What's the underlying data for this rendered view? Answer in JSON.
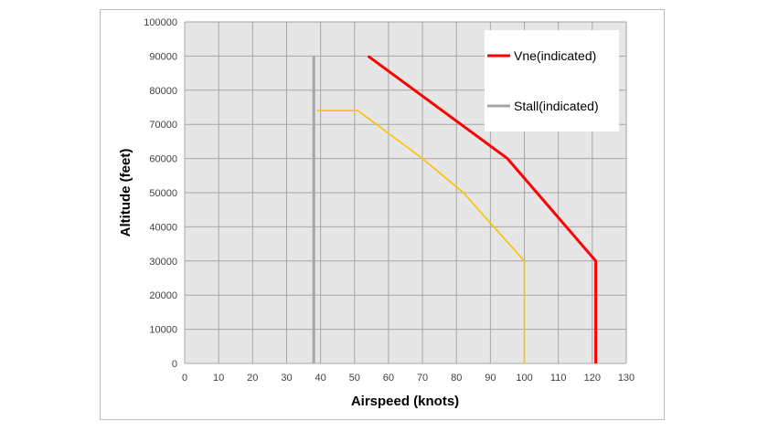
{
  "chart_data": {
    "type": "line",
    "title": "",
    "xlabel": "Airspeed (knots)",
    "ylabel": "Altitude (feet)",
    "xlim": [
      0,
      130
    ],
    "ylim": [
      0,
      100000
    ],
    "x_ticks": [
      0,
      10,
      20,
      30,
      40,
      50,
      60,
      70,
      80,
      90,
      100,
      110,
      120,
      130
    ],
    "y_ticks": [
      0,
      10000,
      20000,
      30000,
      40000,
      50000,
      60000,
      70000,
      80000,
      90000,
      100000
    ],
    "grid": true,
    "plot_background": "#e6e6e6",
    "legend_position": "top-right",
    "series": [
      {
        "name": "Vne(indicated)",
        "color": "#ff0000",
        "points": [
          [
            54,
            90000
          ],
          [
            95,
            60000
          ],
          [
            121,
            30000
          ],
          [
            121,
            0
          ]
        ]
      },
      {
        "name": "Stall(indicated)",
        "color": "#a6a6a6",
        "points": [
          [
            38,
            90000
          ],
          [
            38,
            0
          ]
        ]
      },
      {
        "name": "",
        "color": "#ffc000",
        "points": [
          [
            39,
            74000
          ],
          [
            51,
            74000
          ],
          [
            70,
            60000
          ],
          [
            82,
            50000
          ],
          [
            100,
            30000
          ],
          [
            100,
            0
          ]
        ]
      }
    ]
  }
}
